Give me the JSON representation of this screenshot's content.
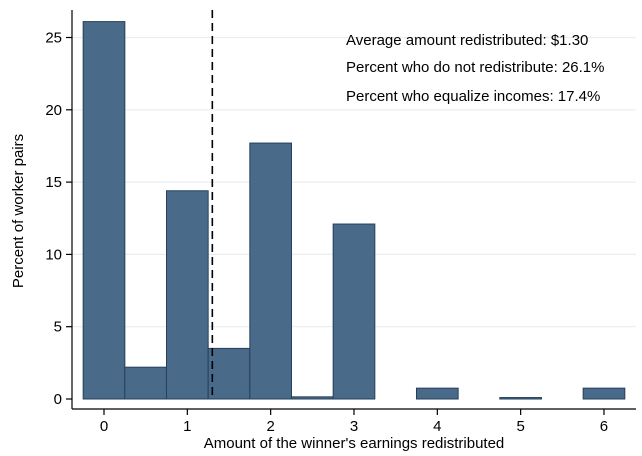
{
  "chart_data": {
    "type": "bar",
    "subtype": "histogram",
    "title": "",
    "xlabel": "Amount of the winner's earnings redistributed",
    "ylabel": "Percent of worker pairs",
    "xlim": [
      -0.35,
      6.35
    ],
    "ylim": [
      0,
      27.5
    ],
    "xticks": [
      0,
      1,
      2,
      3,
      4,
      5,
      6
    ],
    "yticks": [
      0,
      5,
      10,
      15,
      20,
      25
    ],
    "bin_width": 0.5,
    "bins": [
      {
        "x": 0.0,
        "value": 26.1
      },
      {
        "x": 0.5,
        "value": 2.2
      },
      {
        "x": 1.0,
        "value": 14.4
      },
      {
        "x": 1.5,
        "value": 3.5
      },
      {
        "x": 2.0,
        "value": 17.7
      },
      {
        "x": 2.5,
        "value": 0.15
      },
      {
        "x": 3.0,
        "value": 12.1
      },
      {
        "x": 4.0,
        "value": 0.75
      },
      {
        "x": 5.0,
        "value": 0.1
      },
      {
        "x": 6.0,
        "value": 0.75
      }
    ],
    "reference_line": {
      "x": 1.3,
      "style": "dashed"
    },
    "annotations": [
      "Average amount redistributed: $1.30",
      "Percent who do not redistribute: 26.1%",
      "Percent who equalize incomes: 17.4%"
    ],
    "grid": "horizontal",
    "colors": {
      "bar_fill": "#4a6a8a",
      "bar_stroke": "#24405c",
      "grid": "#e8eef2",
      "axis": "#000000",
      "reference_line": "#000000"
    }
  }
}
